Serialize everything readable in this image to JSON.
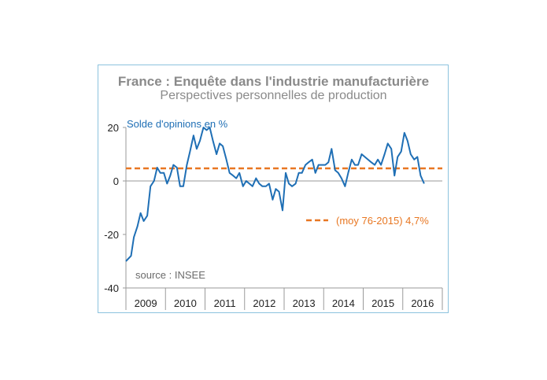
{
  "chart_data": {
    "type": "line",
    "title": "France : Enquête dans l'industrie manufacturière",
    "subtitle": "Perspectives personnelles de production",
    "ylabel": "Solde d'opinions en %",
    "ylim": [
      -40,
      20
    ],
    "yticks": [
      "20",
      "0",
      "-20",
      "-40"
    ],
    "ytick_values": [
      20,
      0,
      -20,
      -40
    ],
    "xlim": [
      2009.0,
      2017.0
    ],
    "year_labels": [
      "2009",
      "2010",
      "2011",
      "2012",
      "2013",
      "2014",
      "2015",
      "2016"
    ],
    "source": "source : INSEE",
    "grid": false,
    "series": [
      {
        "name": "",
        "color": "#1f6fb5",
        "x": [
          2009.0,
          2009.13,
          2009.2,
          2009.29,
          2009.37,
          2009.45,
          2009.54,
          2009.62,
          2009.71,
          2009.79,
          2009.87,
          2009.96,
          2010.04,
          2010.12,
          2010.2,
          2010.29,
          2010.37,
          2010.45,
          2010.54,
          2010.62,
          2010.71,
          2010.79,
          2010.87,
          2010.96,
          2011.04,
          2011.12,
          2011.2,
          2011.29,
          2011.37,
          2011.45,
          2011.54,
          2011.62,
          2011.71,
          2011.79,
          2011.87,
          2011.96,
          2012.04,
          2012.12,
          2012.2,
          2012.29,
          2012.37,
          2012.45,
          2012.54,
          2012.62,
          2012.71,
          2012.79,
          2012.87,
          2012.96,
          2013.04,
          2013.12,
          2013.2,
          2013.29,
          2013.37,
          2013.45,
          2013.54,
          2013.62,
          2013.71,
          2013.79,
          2013.87,
          2013.96,
          2014.04,
          2014.12,
          2014.2,
          2014.29,
          2014.37,
          2014.45,
          2014.54,
          2014.62,
          2014.71,
          2014.79,
          2014.87,
          2014.96,
          2015.04,
          2015.12,
          2015.2,
          2015.29,
          2015.37,
          2015.45,
          2015.54,
          2015.62,
          2015.71,
          2015.79,
          2015.87,
          2015.96,
          2016.04,
          2016.12,
          2016.2,
          2016.29,
          2016.37,
          2016.45,
          2016.54
        ],
        "values": [
          -30,
          -28,
          -21,
          -17,
          -12,
          -15,
          -13,
          -2,
          0,
          5,
          3,
          3,
          -1,
          2,
          6,
          5,
          -2,
          -2,
          6,
          11,
          17,
          12,
          15,
          20,
          19,
          20,
          15,
          10,
          14,
          13,
          8,
          3,
          2,
          1,
          3,
          -2,
          0,
          -1,
          -2,
          1,
          -1,
          -2,
          -2,
          -1,
          -7,
          -3,
          -4,
          -11,
          3,
          -1,
          -2,
          -1,
          3,
          3,
          6,
          7,
          8,
          3,
          6,
          6,
          6,
          7,
          12,
          4,
          3,
          1,
          -2,
          3,
          8,
          6,
          6,
          10,
          9,
          8,
          7,
          6,
          8,
          6,
          10,
          14,
          12,
          2,
          9,
          11,
          18,
          15,
          10,
          8,
          9,
          2,
          -1
        ]
      }
    ],
    "reference_line": {
      "value": 4.7,
      "label": "(moy 76-2015) 4,7%",
      "color": "#e87722"
    }
  }
}
